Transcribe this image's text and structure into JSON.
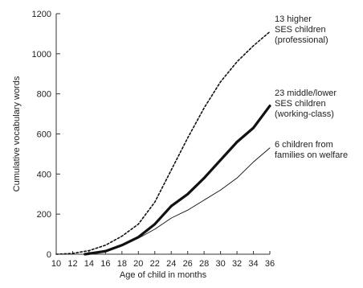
{
  "chart_data": {
    "type": "line",
    "title": "",
    "xlabel": "Age of child in months",
    "ylabel": "Cumulative vocabulary words",
    "xlim": [
      10,
      36
    ],
    "ylim": [
      0,
      1200
    ],
    "x_ticks": [
      "10",
      "12",
      "14",
      "16",
      "18",
      "20",
      "22",
      "24",
      "26",
      "28",
      "30",
      "32",
      "34",
      "36"
    ],
    "y_ticks": [
      "0",
      "200",
      "400",
      "600",
      "800",
      "1000",
      "1200"
    ],
    "grid": false,
    "series": [
      {
        "name": "13 higher SES children (professional)",
        "label_lines": [
          "13 higher",
          "SES children",
          "(professional)"
        ],
        "style": "dotted",
        "x": [
          10,
          12,
          14,
          16,
          18,
          20,
          22,
          24,
          26,
          28,
          30,
          32,
          34,
          36
        ],
        "values": [
          0,
          4,
          18,
          45,
          90,
          150,
          260,
          420,
          580,
          730,
          860,
          960,
          1040,
          1110
        ]
      },
      {
        "name": "23 middle/lower SES children (working-class)",
        "label_lines": [
          "23 middle/lower",
          "SES children",
          "(working-class)"
        ],
        "style": "thick",
        "x": [
          13.5,
          16,
          18,
          20,
          22,
          24,
          26,
          28,
          30,
          32,
          34,
          36
        ],
        "values": [
          0,
          15,
          45,
          85,
          150,
          240,
          300,
          380,
          470,
          560,
          630,
          740
        ]
      },
      {
        "name": "6 children from families on welfare",
        "label_lines": [
          "6 children from",
          "families on welfare"
        ],
        "style": "thin",
        "x": [
          13.5,
          16,
          18,
          20,
          22,
          24,
          26,
          28,
          30,
          32,
          34,
          36
        ],
        "values": [
          0,
          20,
          45,
          80,
          125,
          180,
          220,
          270,
          320,
          380,
          460,
          530
        ]
      }
    ]
  }
}
